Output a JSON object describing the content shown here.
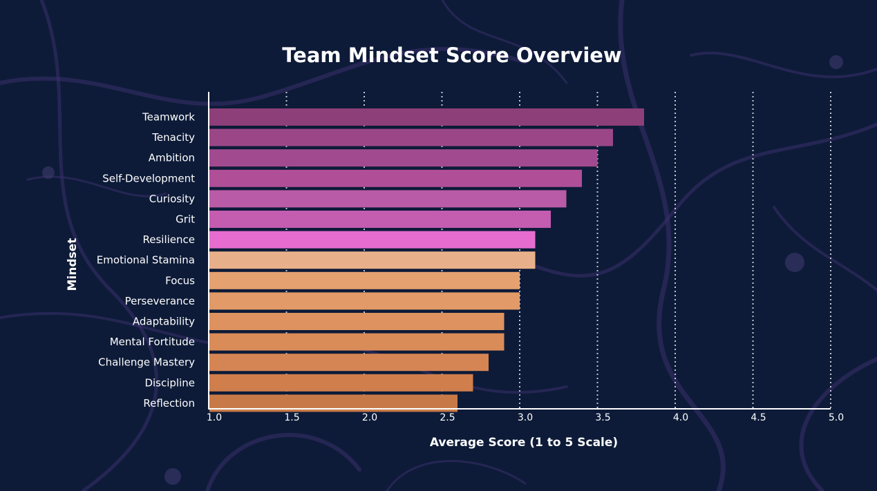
{
  "chart_data": {
    "type": "bar",
    "orientation": "horizontal",
    "title": "Team Mindset Score Overview",
    "xlabel": "Average Score (1 to 5 Scale)",
    "ylabel": "Mindset",
    "xlim": [
      1.0,
      5.0
    ],
    "xticks": [
      "1.0",
      "1.5",
      "2.0",
      "2.5",
      "3.0",
      "3.5",
      "4.0",
      "4.5",
      "5.0"
    ],
    "grid": "vertical-dotted",
    "categories": [
      "Teamwork",
      "Tenacity",
      "Ambition",
      "Self-Development",
      "Curiosity",
      "Grit",
      "Resilience",
      "Emotional Stamina",
      "Focus",
      "Perseverance",
      "Adaptability",
      "Mental Fortitude",
      "Challenge Mastery",
      "Discipline",
      "Reflection"
    ],
    "values": [
      3.8,
      3.6,
      3.5,
      3.4,
      3.3,
      3.2,
      3.1,
      3.1,
      3.0,
      3.0,
      2.9,
      2.9,
      2.8,
      2.7,
      2.6
    ],
    "colors": [
      "#8c3f78",
      "#9b4787",
      "#a24a8f",
      "#b04e98",
      "#b95ba6",
      "#c45cb0",
      "#e66dcf",
      "#e8b08a",
      "#e6a170",
      "#e19a68",
      "#de925f",
      "#d98b58",
      "#d48553",
      "#cf7e4c",
      "#c77a48"
    ]
  },
  "colors": {
    "background": "#0d1b38",
    "text": "#ffffff",
    "axis": "#ffffff",
    "grid": "#c8c8d0"
  }
}
